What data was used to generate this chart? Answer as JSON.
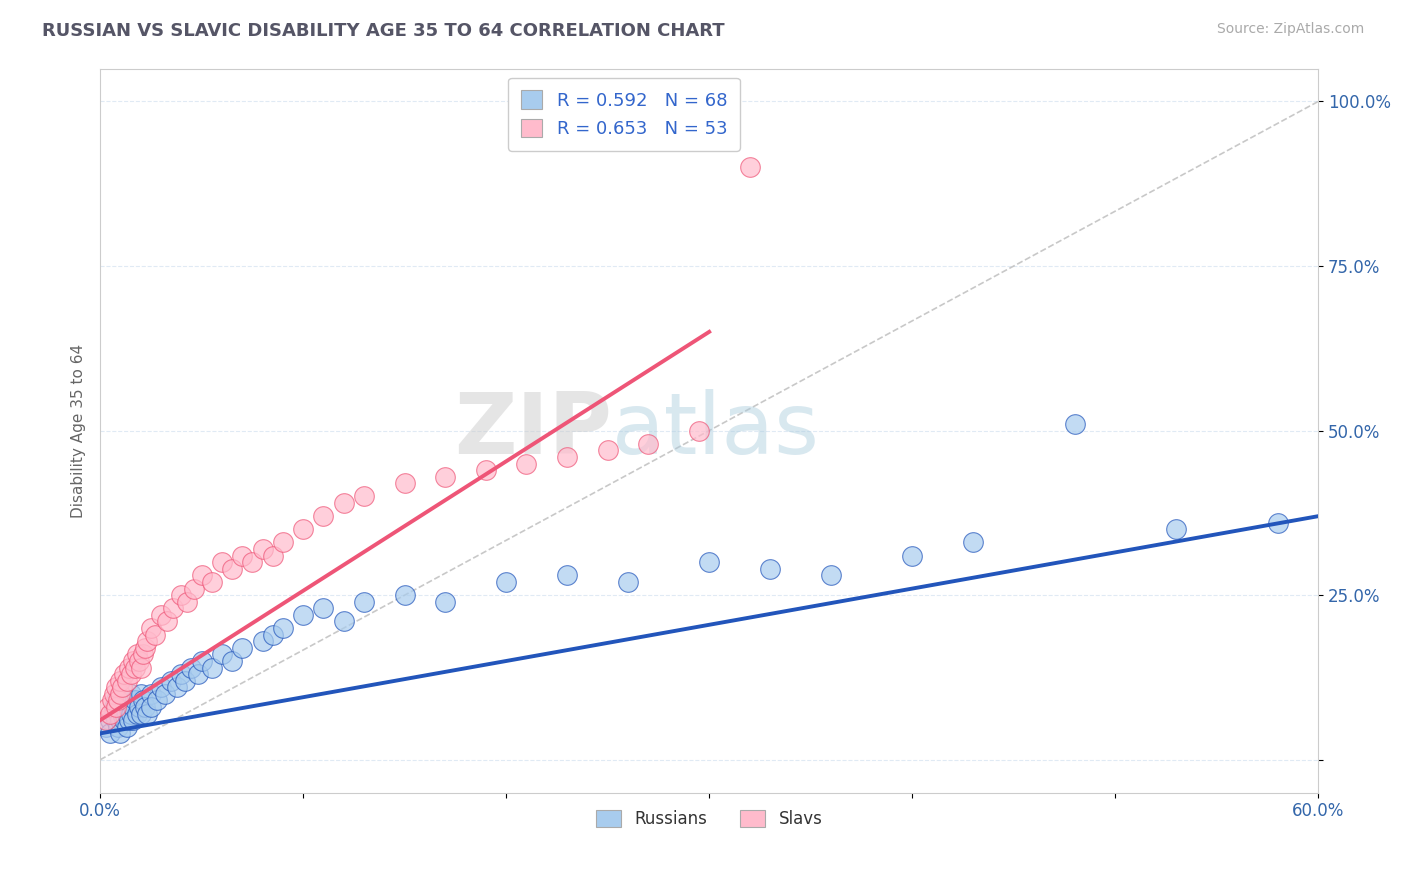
{
  "title": "RUSSIAN VS SLAVIC DISABILITY AGE 35 TO 64 CORRELATION CHART",
  "source_text": "Source: ZipAtlas.com",
  "ylabel": "Disability Age 35 to 64",
  "yaxis_ticks": [
    0.0,
    0.25,
    0.5,
    0.75,
    1.0
  ],
  "yaxis_labels": [
    "",
    "25.0%",
    "50.0%",
    "75.0%",
    "100.0%"
  ],
  "xlim": [
    0.0,
    0.6
  ],
  "ylim": [
    -0.05,
    1.05
  ],
  "legend_r1": "R = 0.592   N = 68",
  "legend_r2": "R = 0.653   N = 53",
  "color_russian": "#A8CCEE",
  "color_slav": "#FFBBCC",
  "color_russian_line": "#2255BB",
  "color_slav_line": "#EE5577",
  "color_ref_line": "#BBBBBB",
  "watermark_zip": "ZIP",
  "watermark_atlas": "atlas",
  "russians_x": [
    0.003,
    0.005,
    0.005,
    0.007,
    0.007,
    0.008,
    0.008,
    0.009,
    0.009,
    0.01,
    0.01,
    0.01,
    0.011,
    0.011,
    0.012,
    0.012,
    0.013,
    0.013,
    0.014,
    0.014,
    0.015,
    0.015,
    0.016,
    0.016,
    0.017,
    0.018,
    0.019,
    0.02,
    0.02,
    0.021,
    0.022,
    0.023,
    0.025,
    0.025,
    0.028,
    0.03,
    0.032,
    0.035,
    0.038,
    0.04,
    0.042,
    0.045,
    0.048,
    0.05,
    0.055,
    0.06,
    0.065,
    0.07,
    0.08,
    0.085,
    0.09,
    0.1,
    0.11,
    0.12,
    0.13,
    0.15,
    0.17,
    0.2,
    0.23,
    0.26,
    0.3,
    0.33,
    0.36,
    0.4,
    0.43,
    0.48,
    0.53,
    0.58
  ],
  "russians_y": [
    0.05,
    0.06,
    0.04,
    0.08,
    0.07,
    0.06,
    0.09,
    0.05,
    0.07,
    0.06,
    0.08,
    0.04,
    0.07,
    0.09,
    0.06,
    0.08,
    0.07,
    0.05,
    0.09,
    0.06,
    0.07,
    0.1,
    0.08,
    0.06,
    0.09,
    0.07,
    0.08,
    0.1,
    0.07,
    0.09,
    0.08,
    0.07,
    0.1,
    0.08,
    0.09,
    0.11,
    0.1,
    0.12,
    0.11,
    0.13,
    0.12,
    0.14,
    0.13,
    0.15,
    0.14,
    0.16,
    0.15,
    0.17,
    0.18,
    0.19,
    0.2,
    0.22,
    0.23,
    0.21,
    0.24,
    0.25,
    0.24,
    0.27,
    0.28,
    0.27,
    0.3,
    0.29,
    0.28,
    0.31,
    0.33,
    0.51,
    0.35,
    0.36
  ],
  "slavs_x": [
    0.003,
    0.004,
    0.005,
    0.006,
    0.007,
    0.008,
    0.008,
    0.009,
    0.01,
    0.01,
    0.011,
    0.012,
    0.013,
    0.014,
    0.015,
    0.016,
    0.017,
    0.018,
    0.019,
    0.02,
    0.021,
    0.022,
    0.023,
    0.025,
    0.027,
    0.03,
    0.033,
    0.036,
    0.04,
    0.043,
    0.046,
    0.05,
    0.055,
    0.06,
    0.065,
    0.07,
    0.075,
    0.08,
    0.085,
    0.09,
    0.1,
    0.11,
    0.12,
    0.13,
    0.15,
    0.17,
    0.19,
    0.21,
    0.23,
    0.25,
    0.27,
    0.295,
    0.32
  ],
  "slavs_y": [
    0.06,
    0.08,
    0.07,
    0.09,
    0.1,
    0.08,
    0.11,
    0.09,
    0.1,
    0.12,
    0.11,
    0.13,
    0.12,
    0.14,
    0.13,
    0.15,
    0.14,
    0.16,
    0.15,
    0.14,
    0.16,
    0.17,
    0.18,
    0.2,
    0.19,
    0.22,
    0.21,
    0.23,
    0.25,
    0.24,
    0.26,
    0.28,
    0.27,
    0.3,
    0.29,
    0.31,
    0.3,
    0.32,
    0.31,
    0.33,
    0.35,
    0.37,
    0.39,
    0.4,
    0.42,
    0.43,
    0.44,
    0.45,
    0.46,
    0.47,
    0.48,
    0.5,
    0.9
  ],
  "russian_line_x": [
    0.0,
    0.6
  ],
  "russian_line_y": [
    0.04,
    0.37
  ],
  "slav_line_x": [
    0.0,
    0.3
  ],
  "slav_line_y": [
    0.06,
    0.65
  ],
  "ref_line_x": [
    0.0,
    0.6
  ],
  "ref_line_y": [
    0.0,
    1.0
  ]
}
